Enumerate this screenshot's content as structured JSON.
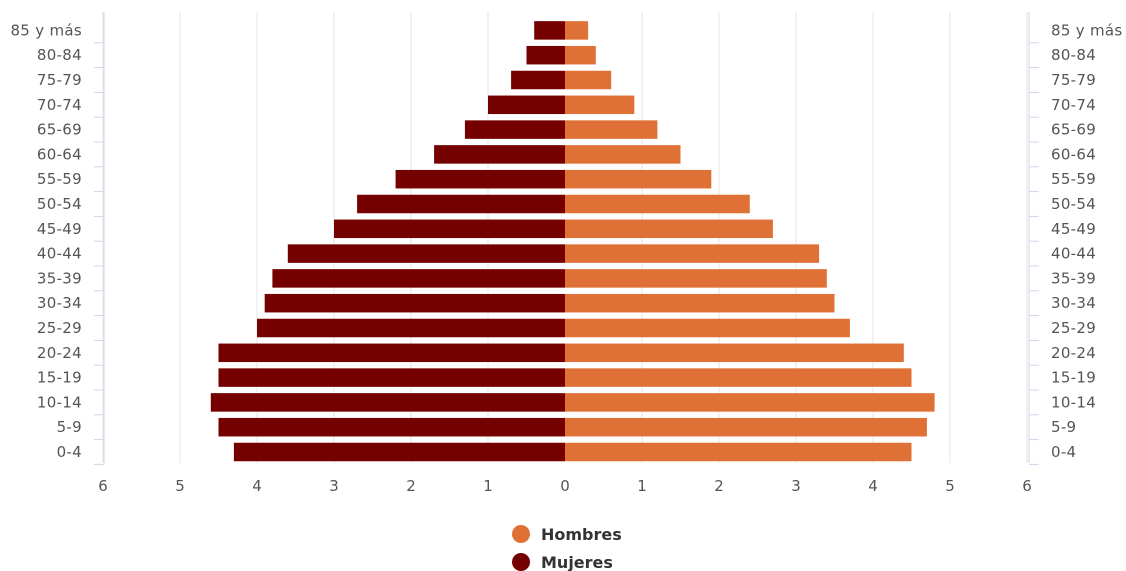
{
  "chart_data": {
    "type": "bar",
    "orientation": "horizontal",
    "layout": "population-pyramid",
    "categories": [
      "0-4",
      "5-9",
      "10-14",
      "15-19",
      "20-24",
      "25-29",
      "30-34",
      "35-39",
      "40-44",
      "45-49",
      "50-54",
      "55-59",
      "60-64",
      "65-69",
      "70-74",
      "75-79",
      "80-84",
      "85 y más"
    ],
    "series": [
      {
        "name": "Hombres",
        "color": "#e07136",
        "side": "right",
        "values": [
          4.5,
          4.7,
          4.8,
          4.5,
          4.4,
          3.7,
          3.5,
          3.4,
          3.3,
          2.7,
          2.4,
          1.9,
          1.5,
          1.2,
          0.9,
          0.6,
          0.4,
          0.3
        ]
      },
      {
        "name": "Mujeres",
        "color": "#740000",
        "side": "left",
        "values": [
          4.3,
          4.5,
          4.6,
          4.5,
          4.5,
          4.0,
          3.9,
          3.8,
          3.6,
          3.0,
          2.7,
          2.2,
          1.7,
          1.3,
          1.0,
          0.7,
          0.5,
          0.4
        ]
      }
    ],
    "x_ticks": [
      "6",
      "5",
      "4",
      "3",
      "2",
      "1",
      "0",
      "1",
      "2",
      "3",
      "4",
      "5",
      "6"
    ],
    "xlim": [
      -6,
      6
    ],
    "grid": true,
    "legend": "bottom-center",
    "title": "",
    "xlabel": "",
    "ylabel": ""
  }
}
